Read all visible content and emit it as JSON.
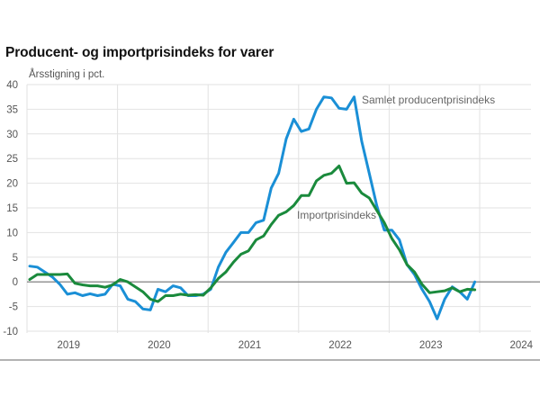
{
  "chart_data": {
    "type": "line",
    "title": "Producent- og importprisindeks for varer",
    "ylabel": "Årsstigning i pct.",
    "xlabel": "",
    "ylim": [
      -10,
      40
    ],
    "yticks": [
      40,
      35,
      30,
      25,
      20,
      15,
      10,
      5,
      0,
      -5,
      -10
    ],
    "xticks": [
      "2019",
      "2020",
      "2021",
      "2022",
      "2023",
      "2024"
    ],
    "x_start": "2019-01",
    "x_frequency": "monthly",
    "grid": true,
    "legend": "inline-annotations",
    "series": [
      {
        "name": "Samlet producentprisindeks",
        "color": "#1a8fd6",
        "values": [
          3.2,
          3.0,
          2.0,
          1.0,
          -0.5,
          -2.5,
          -2.2,
          -2.8,
          -2.4,
          -2.8,
          -2.5,
          -0.5,
          -0.8,
          -3.5,
          -4.0,
          -5.5,
          -5.7,
          -1.5,
          -2.0,
          -0.8,
          -1.2,
          -2.8,
          -2.8,
          -2.5,
          -1.5,
          3.0,
          6.0,
          8.0,
          10.0,
          10.0,
          12.0,
          12.5,
          19.0,
          22.0,
          29.0,
          33.0,
          30.5,
          31.0,
          35.0,
          37.5,
          37.3,
          35.2,
          35.0,
          37.5,
          28.5,
          22.0,
          15.5,
          10.5,
          10.5,
          8.5,
          3.5,
          1.5,
          -1.5,
          -4.0,
          -7.5,
          -3.5,
          -1.0,
          -2.0,
          -3.5,
          0.0
        ]
      },
      {
        "name": "Importprisindeks",
        "color": "#1a8a3c",
        "values": [
          0.5,
          1.5,
          1.5,
          1.5,
          1.5,
          1.6,
          -0.3,
          -0.6,
          -0.8,
          -0.8,
          -1.1,
          -0.6,
          0.5,
          0.0,
          -1.0,
          -2.0,
          -3.5,
          -4.0,
          -2.8,
          -2.8,
          -2.5,
          -2.7,
          -2.6,
          -2.7,
          -1.2,
          0.7,
          2.0,
          4.0,
          5.6,
          6.3,
          8.5,
          9.3,
          11.6,
          13.5,
          14.2,
          15.5,
          17.5,
          17.5,
          20.5,
          21.6,
          22.0,
          23.5,
          20.0,
          20.1,
          18.0,
          17.0,
          14.5,
          12.0,
          8.8,
          6.5,
          3.5,
          2.0,
          -0.5,
          -2.2,
          -2.0,
          -1.8,
          -1.2,
          -2.0,
          -1.5,
          -1.6
        ]
      }
    ],
    "annotations": [
      {
        "text": "Samlet producentprisindeks",
        "series": 0
      },
      {
        "text": "Importprisindeks",
        "series": 1
      }
    ]
  }
}
